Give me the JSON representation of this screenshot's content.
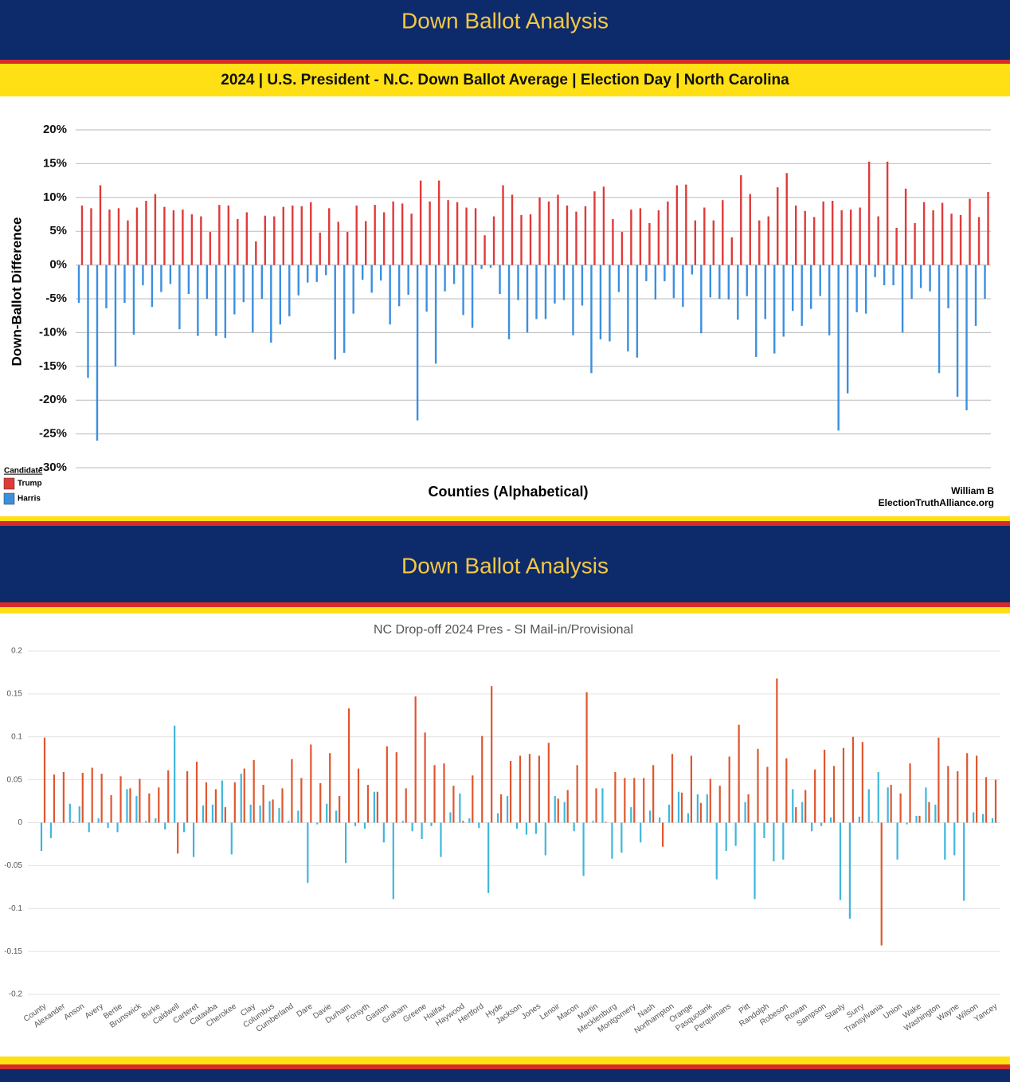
{
  "chart_data": [
    {
      "type": "bar",
      "banner": "Down Ballot Analysis",
      "title": "2024 | U.S. President - N.C. Down Ballot Average | Election Day | North Carolina",
      "y_label": "Down-Ballot Difference",
      "x_label": "Counties (Alphabetical)",
      "legend_title": "Candidate",
      "credit": [
        "William B",
        "ElectionTruthAlliance.org"
      ],
      "grid": true,
      "ylim": [
        -30,
        20
      ],
      "yticks": [
        {
          "value": 20,
          "label": "20%"
        },
        {
          "value": 15,
          "label": "15%"
        },
        {
          "value": 10,
          "label": "10%"
        },
        {
          "value": 5,
          "label": "5%"
        },
        {
          "value": 0,
          "label": "0%"
        },
        {
          "value": -5,
          "label": "-5%"
        },
        {
          "value": -10,
          "label": "-10%"
        },
        {
          "value": -15,
          "label": "-15%"
        },
        {
          "value": -20,
          "label": "-20%"
        },
        {
          "value": -25,
          "label": "-25%"
        },
        {
          "value": -30,
          "label": "-30%"
        }
      ],
      "categories": [
        null,
        null,
        null,
        null,
        null,
        null,
        null,
        null,
        null,
        null,
        null,
        null,
        null,
        null,
        null,
        null,
        null,
        null,
        null,
        null,
        null,
        null,
        null,
        null,
        null,
        null,
        null,
        null,
        null,
        null,
        null,
        null,
        null,
        null,
        null,
        null,
        null,
        null,
        null,
        null,
        null,
        null,
        null,
        null,
        null,
        null,
        null,
        null,
        null,
        null,
        null,
        null,
        null,
        null,
        null,
        null,
        null,
        null,
        null,
        null,
        null,
        null,
        null,
        null,
        null,
        null,
        null,
        null,
        null,
        null,
        null,
        null,
        null,
        null,
        null,
        null,
        null,
        null,
        null,
        null,
        null,
        null,
        null,
        null,
        null,
        null,
        null,
        null,
        null,
        null,
        null,
        null,
        null,
        null,
        null,
        null,
        null,
        null,
        null,
        null
      ],
      "series": [
        {
          "name": "Trump",
          "color": "#e03a3a",
          "values": [
            8.8,
            8.4,
            11.8,
            8.2,
            8.4,
            6.6,
            8.5,
            9.5,
            10.5,
            8.6,
            8.1,
            8.2,
            7.5,
            7.2,
            4.9,
            8.9,
            8.8,
            6.8,
            7.8,
            3.5,
            7.3,
            7.2,
            8.6,
            8.8,
            8.7,
            9.3,
            4.8,
            8.4,
            6.4,
            4.9,
            8.8,
            6.5,
            8.9,
            7.8,
            9.4,
            9.1,
            7.6,
            12.5,
            9.4,
            12.5,
            9.6,
            9.3,
            8.5,
            8.4,
            4.4,
            7.2,
            11.8,
            10.4,
            7.4,
            7.5,
            10.0,
            9.4,
            10.4,
            8.8,
            7.9,
            8.7,
            10.9,
            11.6,
            6.8,
            4.9,
            8.2,
            8.4,
            6.2,
            8.1,
            9.4,
            11.8,
            11.9,
            6.6,
            8.5,
            6.6,
            9.6,
            4.1,
            13.3,
            10.5,
            6.6,
            7.2,
            11.5,
            13.6,
            8.8,
            8.0,
            7.1,
            9.4,
            9.5,
            8.1,
            8.2,
            8.5,
            15.3,
            7.2,
            15.3,
            5.5,
            11.3,
            6.2,
            9.3,
            8.1,
            9.2,
            7.6,
            7.4,
            9.8,
            7.1,
            10.8
          ]
        },
        {
          "name": "Harris",
          "color": "#3a8fe0",
          "values": [
            -5.6,
            -16.7,
            -26,
            -6.4,
            -15,
            -5.6,
            -10.3,
            -3,
            -6.2,
            -4,
            -2.8,
            -9.5,
            -4.3,
            -10.5,
            -5,
            -10.5,
            -10.8,
            -7.3,
            -5.5,
            -10,
            -5,
            -11.5,
            -8.8,
            -7.6,
            -4.5,
            -2.6,
            -2.5,
            -1.5,
            -14,
            -13,
            -7.2,
            -2.2,
            -4.1,
            -2.3,
            -8.8,
            -6.1,
            -4.4,
            -23,
            -6.9,
            -14.6,
            -3.9,
            -2.8,
            -7.4,
            -9.3,
            -0.6,
            -0.4,
            -4.3,
            -11,
            -5.2,
            -10,
            -8,
            -8,
            -5.7,
            -5.2,
            -10.4,
            -6,
            -16,
            -11,
            -11.3,
            -4,
            -12.8,
            -13.7,
            -2.4,
            -5.1,
            -2.4,
            -4.9,
            -6.2,
            -1.4,
            -10.1,
            -4.8,
            -5,
            -5.1,
            -8.1,
            -4.6,
            -13.6,
            -8,
            -13.1,
            -10.6,
            -6.8,
            -9,
            -6.5,
            -4.6,
            -10.4,
            -24.5,
            -19,
            -7,
            -7.2,
            -1.8,
            -3,
            -3,
            -10,
            -5,
            -3.4,
            -3.9,
            -16,
            -6.4,
            -19.5,
            -21.5,
            -9,
            -5
          ]
        }
      ]
    },
    {
      "type": "bar",
      "banner": "Down Ballot Analysis",
      "title": "NC Drop-off 2024 Pres - SI Mail-in/Provisional",
      "grid": true,
      "ylim": [
        -0.2,
        0.2
      ],
      "yticks": [
        0.2,
        0.15,
        0.1,
        0.05,
        0,
        -0.05,
        -0.1,
        -0.15,
        -0.2
      ],
      "categories": [
        "County",
        null,
        "Alexander",
        null,
        "Anson",
        null,
        "Avery",
        null,
        "Bertie",
        null,
        "Brunswick",
        null,
        "Burke",
        null,
        "Caldwell",
        null,
        "Carteret",
        null,
        "Catawba",
        null,
        "Cherokee",
        null,
        "Clay",
        null,
        "Columbus",
        null,
        "Cumberland",
        null,
        "Dare",
        null,
        "Davie",
        null,
        "Durham",
        null,
        "Forsyth",
        null,
        "Gaston",
        null,
        "Graham",
        null,
        "Greene",
        null,
        "Halifax",
        null,
        "Haywood",
        null,
        "Hertford",
        null,
        "Hyde",
        null,
        "Jackson",
        null,
        "Jones",
        null,
        "Lenoir",
        null,
        "Macon",
        null,
        "Martin",
        null,
        "Mecklenburg",
        null,
        "Montgomery",
        null,
        "Nash",
        null,
        "Northampton",
        null,
        "Orange",
        null,
        "Pasquotank",
        null,
        "Perquimans",
        null,
        "Pitt",
        null,
        "Randolph",
        null,
        "Robeson",
        null,
        "Rowan",
        null,
        "Sampson",
        null,
        "Stanly",
        null,
        "Surry",
        null,
        "Transylvania",
        null,
        "Union",
        null,
        "Wake",
        null,
        "Washington",
        null,
        "Wayne",
        null,
        "Wilson",
        null,
        "Yancey"
      ],
      "series": [
        {
          "color": "#e0562f",
          "values": [
            0.099,
            0.056,
            0.059,
            0.001,
            0.058,
            0.064,
            0.057,
            0.032,
            0.054,
            0.04,
            0.051,
            0.034,
            0.041,
            0.061,
            -0.036,
            0.06,
            0.071,
            0.047,
            0.039,
            0.018,
            0.047,
            0.063,
            0.073,
            0.044,
            0.027,
            0.04,
            0.074,
            0.052,
            0.091,
            0.046,
            0.081,
            0.031,
            0.133,
            0.063,
            0.044,
            0.036,
            0.089,
            0.082,
            0.04,
            0.147,
            0.105,
            0.067,
            0.069,
            0.043,
            0.002,
            0.055,
            0.101,
            0.159,
            0.033,
            0.072,
            0.078,
            0.08,
            0.078,
            0.093,
            0.028,
            0.038,
            0.067,
            0.152,
            0.04,
            0.001,
            0.059,
            0.052,
            0.052,
            0.052,
            0.067,
            -0.028,
            0.08,
            0.035,
            0.078,
            0.023,
            0.051,
            0.043,
            0.077,
            0.114,
            0.033,
            0.086,
            0.065,
            0.168,
            0.075,
            0.018,
            0.038,
            0.062,
            0.085,
            0.066,
            0.087,
            0.1,
            0.094,
            0.001,
            -0.143,
            0.044,
            0.034,
            0.069,
            0.008,
            0.024,
            0.099,
            0.066,
            0.06,
            0.081,
            0.078,
            0.053,
            0.05
          ]
        },
        {
          "color": "#3fb6dc",
          "values": [
            -0.033,
            -0.018,
            0,
            0.022,
            0.019,
            -0.011,
            0.005,
            -0.006,
            -0.011,
            0.039,
            0.031,
            0.002,
            0.005,
            -0.008,
            0.113,
            -0.011,
            -0.04,
            0.02,
            0.021,
            0.049,
            -0.037,
            0.057,
            0.021,
            0.02,
            0.025,
            0.017,
            0.002,
            0.014,
            -0.07,
            -0.002,
            0.022,
            0.014,
            -0.047,
            -0.004,
            -0.007,
            0.036,
            -0.023,
            -0.089,
            0.002,
            -0.01,
            -0.019,
            -0.004,
            -0.04,
            0.012,
            0.034,
            0.005,
            -0.006,
            -0.082,
            0.011,
            0.031,
            -0.007,
            -0.014,
            -0.013,
            -0.038,
            0.031,
            0.024,
            -0.01,
            -0.062,
            0.002,
            0.04,
            -0.042,
            -0.035,
            0.018,
            -0.023,
            0.014,
            0.006,
            0.021,
            0.036,
            0.011,
            0.033,
            0.033,
            -0.066,
            -0.033,
            -0.027,
            0.024,
            -0.089,
            -0.018,
            -0.045,
            -0.043,
            0.039,
            0.024,
            -0.01,
            -0.004,
            0.006,
            -0.09,
            -0.112,
            0.007,
            0.039,
            0.059,
            0.041,
            -0.043,
            -0.002,
            0.008,
            0.041,
            0.021,
            -0.043,
            -0.038,
            -0.091,
            0.012,
            0.01,
            0.005
          ]
        }
      ]
    }
  ]
}
